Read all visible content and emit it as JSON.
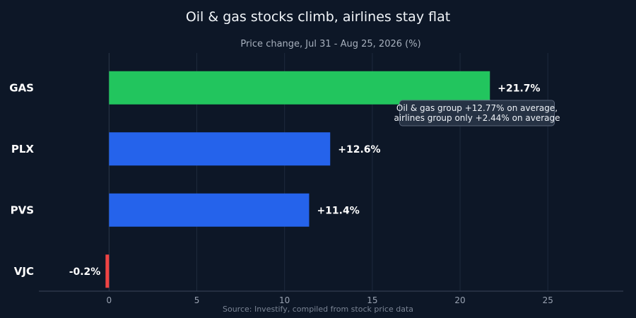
{
  "chart_data": {
    "type": "bar",
    "orientation": "horizontal",
    "title": "Oil & gas stocks climb, airlines stay flat",
    "subtitle": "Price change, Jul 31 - Aug 25, 2026 (%)",
    "source": "Source: Investify, compiled from stock price data",
    "categories": [
      "GAS",
      "PLX",
      "PVS",
      "VJC"
    ],
    "values": [
      21.7,
      12.6,
      11.4,
      -0.2
    ],
    "value_labels": [
      "+21.7%",
      "+12.6%",
      "+11.4%",
      "-0.2%"
    ],
    "bar_colors": [
      "#22c55e",
      "#2563eb",
      "#2563eb",
      "#ef4444"
    ],
    "xlim": [
      -4,
      29.3
    ],
    "xticks": [
      0,
      5,
      10,
      15,
      20,
      25
    ],
    "grid": true,
    "annotation": {
      "lines": [
        "Oil & gas group +12.77% on average,",
        "airlines group only +2.44% on average"
      ],
      "target_category": "GAS"
    }
  }
}
